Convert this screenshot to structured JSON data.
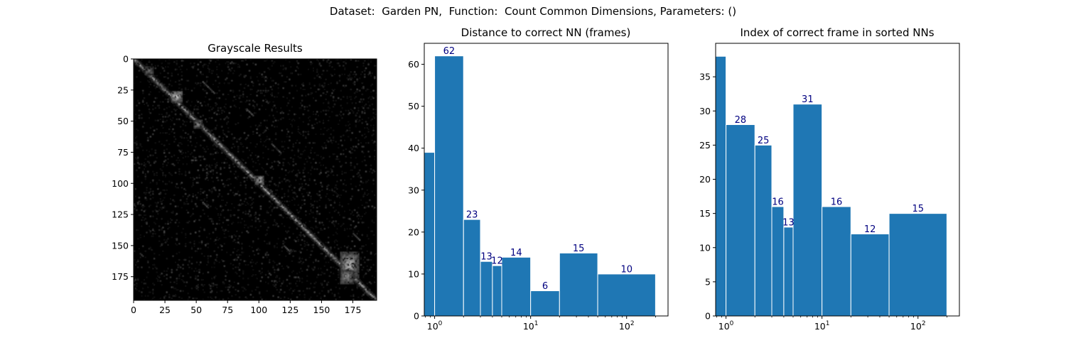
{
  "figure": {
    "suptitle": "Dataset:  Garden PN,  Function:  Count Common Dimensions, Parameters: ()"
  },
  "chart_data": [
    {
      "type": "heatmap",
      "title": "Grayscale Results",
      "colormap": "gray",
      "xlim": [
        0,
        194
      ],
      "ylim": [
        194,
        0
      ],
      "xticks": [
        0,
        25,
        50,
        75,
        100,
        125,
        150,
        175
      ],
      "yticks": [
        0,
        25,
        50,
        75,
        100,
        125,
        150,
        175
      ],
      "size": 194
    },
    {
      "type": "bar",
      "title": "Distance to correct NN (frames)",
      "xscale": "log",
      "bins": [
        [
          0,
          1
        ],
        [
          1,
          2
        ],
        [
          2,
          3
        ],
        [
          3,
          4
        ],
        [
          4,
          5
        ],
        [
          5,
          10
        ],
        [
          10,
          20
        ],
        [
          20,
          50
        ],
        [
          50,
          200
        ]
      ],
      "values": [
        39,
        62,
        23,
        13,
        12,
        14,
        6,
        15,
        10
      ],
      "data_labels": [
        "",
        "62",
        "23",
        "13",
        "12",
        "14",
        "6",
        "15",
        "10"
      ],
      "ylim": [
        0,
        65
      ],
      "yticks": [
        0,
        10,
        20,
        30,
        40,
        50,
        60
      ],
      "xticks": [
        "10^0",
        "10^1",
        "10^2"
      ],
      "bar_color": "#1f77b4",
      "label_color": "#000080",
      "grid": false
    },
    {
      "type": "bar",
      "title": "Index of correct frame in sorted NNs",
      "xscale": "log",
      "bins": [
        [
          0,
          1
        ],
        [
          1,
          2
        ],
        [
          2,
          3
        ],
        [
          3,
          4
        ],
        [
          4,
          5
        ],
        [
          5,
          10
        ],
        [
          10,
          20
        ],
        [
          20,
          50
        ],
        [
          50,
          200
        ]
      ],
      "values": [
        38,
        28,
        25,
        16,
        13,
        31,
        16,
        12,
        15
      ],
      "data_labels": [
        "",
        "28",
        "25",
        "16",
        "13",
        "31",
        "16",
        "12",
        "15"
      ],
      "ylim": [
        0,
        39.9
      ],
      "yticks": [
        0,
        5,
        10,
        15,
        20,
        25,
        30,
        35
      ],
      "xticks": [
        "10^0",
        "10^1",
        "10^2"
      ],
      "bar_color": "#1f77b4",
      "label_color": "#000080",
      "grid": false
    }
  ]
}
